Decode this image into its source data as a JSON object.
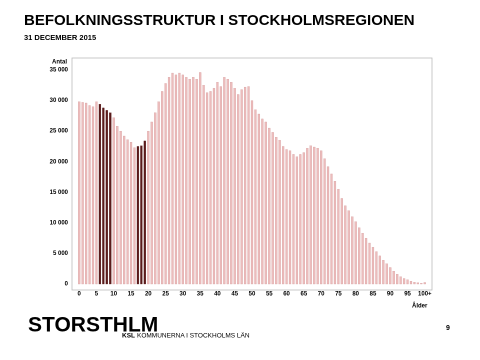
{
  "chart_data": {
    "type": "bar",
    "title": "BEFOLKNINGSSTRUKTUR I STOCKHOLMSREGIONEN",
    "subtitle": "31 DECEMBER 2015",
    "y_label": "Antal",
    "x_label": "Ålder",
    "x": [
      0,
      1,
      2,
      3,
      4,
      5,
      6,
      7,
      8,
      9,
      10,
      11,
      12,
      13,
      14,
      15,
      16,
      17,
      18,
      19,
      20,
      21,
      22,
      23,
      24,
      25,
      26,
      27,
      28,
      29,
      30,
      31,
      32,
      33,
      34,
      35,
      36,
      37,
      38,
      39,
      40,
      41,
      42,
      43,
      44,
      45,
      46,
      47,
      48,
      49,
      50,
      51,
      52,
      53,
      54,
      55,
      56,
      57,
      58,
      59,
      60,
      61,
      62,
      63,
      64,
      65,
      66,
      67,
      68,
      69,
      70,
      71,
      72,
      73,
      74,
      75,
      76,
      77,
      78,
      79,
      80,
      81,
      82,
      83,
      84,
      85,
      86,
      87,
      88,
      89,
      90,
      91,
      92,
      93,
      94,
      95,
      96,
      97,
      98,
      99,
      100
    ],
    "values": [
      29800,
      29700,
      29600,
      29200,
      29000,
      29800,
      29400,
      28800,
      28400,
      28000,
      27200,
      25800,
      25000,
      24200,
      23600,
      23200,
      22300,
      22500,
      22600,
      23400,
      25000,
      26500,
      28000,
      29800,
      31500,
      32800,
      33800,
      34500,
      34200,
      34500,
      34200,
      33800,
      33500,
      33800,
      33500,
      34600,
      32500,
      31300,
      31500,
      32000,
      33000,
      32300,
      33800,
      33500,
      33000,
      32000,
      31000,
      31800,
      32200,
      32300,
      30000,
      28500,
      27800,
      27000,
      26500,
      25500,
      24800,
      24000,
      23500,
      22500,
      22000,
      21800,
      21200,
      20800,
      21200,
      21500,
      22200,
      22600,
      22400,
      22200,
      21800,
      20500,
      19200,
      18000,
      16800,
      15500,
      14000,
      12800,
      12000,
      11000,
      10200,
      9200,
      8300,
      7500,
      6700,
      6000,
      5300,
      4600,
      3900,
      3300,
      2700,
      2100,
      1600,
      1200,
      900,
      700,
      450,
      300,
      200,
      130,
      250
    ],
    "color": "#ecbcbc",
    "highlight": {
      "color": "#5a1b1b",
      "x": [
        6,
        7,
        8,
        9,
        17,
        18,
        19
      ]
    },
    "xlim": [
      -1.5,
      101.5
    ],
    "xticks": [
      0,
      5,
      10,
      15,
      20,
      25,
      30,
      35,
      40,
      45,
      50,
      55,
      60,
      65,
      70,
      75,
      80,
      85,
      90,
      95,
      {
        "value": 100,
        "label": "100+"
      }
    ],
    "ylim": [
      0,
      35000
    ],
    "yticks": [
      0,
      {
        "value": 5000,
        "label": "5 000"
      },
      {
        "value": 10000,
        "label": "10 000"
      },
      {
        "value": 15000,
        "label": "15 000"
      },
      {
        "value": 20000,
        "label": "20 000"
      },
      {
        "value": 25000,
        "label": "25 000"
      },
      {
        "value": 30000,
        "label": "30 000"
      },
      {
        "value": 35000,
        "label": "35 000"
      }
    ],
    "grid": false
  },
  "footer": {
    "brand": "STORSTHLM",
    "org": "KSL",
    "org_name": "KOMMUNERNA I STOCKHOLMS LÄN",
    "page": "9"
  }
}
